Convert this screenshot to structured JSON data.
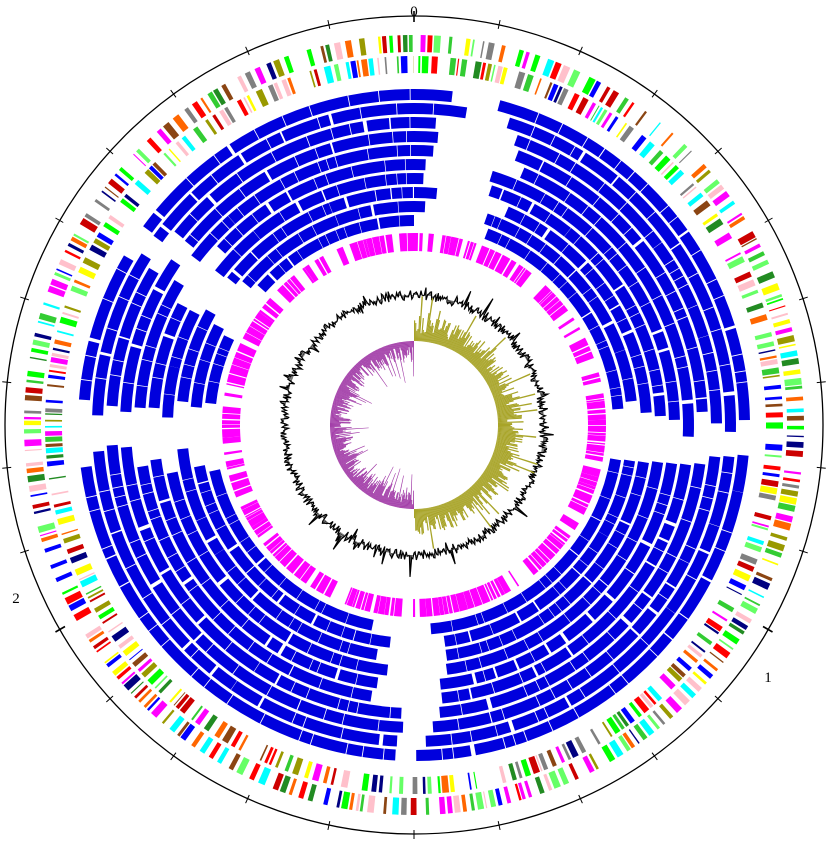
{
  "scale": {
    "labels": [
      "0",
      "1",
      "2"
    ],
    "major_ticks": 3,
    "minor_ticks_per_major": 9
  },
  "tracks": {
    "cog_forward": {
      "description_visible": false,
      "colors": [
        "#00ff00",
        "#33cc33",
        "#66ff66",
        "#ff0000",
        "#0000ff",
        "#ffff00",
        "#ff00ff",
        "#00ffff",
        "#8b4513",
        "#808080",
        "#ffc0cb",
        "#cc0000",
        "#000080",
        "#999900",
        "#ff6600",
        "#228b22"
      ]
    },
    "cog_reverse": {
      "colors": [
        "#00ff00",
        "#33cc33",
        "#66ff66",
        "#ff0000",
        "#0000ff",
        "#ffff00",
        "#ff00ff",
        "#00ffff",
        "#8b4513",
        "#808080",
        "#ffc0cb",
        "#cc0000",
        "#000080",
        "#999900",
        "#ff6600",
        "#228b22"
      ]
    },
    "blast_rings": {
      "count": 10,
      "color": "#0000dd"
    },
    "gene_ring": {
      "color": "#ff00ff"
    },
    "gc_content": {
      "color": "#000000"
    },
    "gc_skew": {
      "positive_color": "#a8a428",
      "negative_color": "#a23da8"
    }
  }
}
